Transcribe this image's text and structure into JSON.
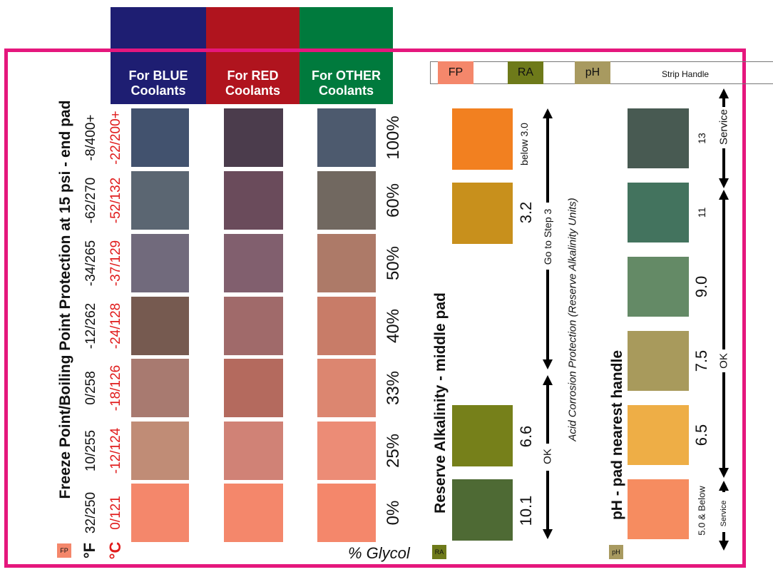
{
  "headers": {
    "blue": {
      "line1": "For BLUE",
      "line2": "Coolants",
      "color": "#1e1e72"
    },
    "red": {
      "line1": "For RED",
      "line2": "Coolants",
      "color": "#b0141e"
    },
    "other": {
      "line1": "For OTHER",
      "line2": "Coolants",
      "color": "#007a3d"
    }
  },
  "frame_color": "#e5177d",
  "freeze_title": "Freeze Point/Boiling Point Protection at 15 psi - end pad",
  "fp_badge": "FP",
  "unit_f": "°F",
  "unit_c": "°C",
  "rows": [
    {
      "f": "-8/400+",
      "c": "-22/200+",
      "glycol": "100%",
      "blue": "#42526e",
      "red": "#4b3c4c",
      "other": "#4d5a6e"
    },
    {
      "f": "-62/270",
      "c": "-52/132",
      "glycol": "60%",
      "blue": "#5b6672",
      "red": "#6a4b5b",
      "other": "#716860"
    },
    {
      "f": "-34/265",
      "c": "-37/129",
      "glycol": "50%",
      "blue": "#716a7c",
      "red": "#815f6e",
      "other": "#ad7a68"
    },
    {
      "f": "-12/262",
      "c": "-24/128",
      "glycol": "40%",
      "blue": "#765a50",
      "red": "#a06a6a",
      "other": "#c87c68"
    },
    {
      "f": "0/258",
      "c": "-18/126",
      "glycol": "33%",
      "blue": "#a87a70",
      "red": "#b46a5e",
      "other": "#dc8670"
    },
    {
      "f": "10/255",
      "c": "-12/124",
      "glycol": "25%",
      "blue": "#c08c76",
      "red": "#d08276",
      "other": "#ec8c76"
    },
    {
      "f": "32/250",
      "c": "0/121",
      "glycol": "0%",
      "blue": "#f4876b",
      "red": "#f4876b",
      "other": "#f4876b"
    }
  ],
  "glycol_label": "% Glycol",
  "strip": {
    "fp": {
      "label": "FP",
      "color": "#f4876b"
    },
    "ra": {
      "label": "RA",
      "color": "#6e7a1a"
    },
    "ph": {
      "label": "pH",
      "color": "#a89a60"
    },
    "handle": "Strip Handle"
  },
  "ra_section": {
    "title": "Reserve Alkalinity - middle pad",
    "badge": "RA",
    "swatches": [
      {
        "label": "below 3.0",
        "color": "#f28020"
      },
      {
        "label": "3.2",
        "color": "#c8901c"
      },
      {
        "label": "6.6",
        "color": "#76801a"
      },
      {
        "label": "10.1",
        "color": "#4e6a34"
      }
    ],
    "go_to_step": "Go to Step 3",
    "ok": "OK",
    "acid_note": "Acid Corrosion Protection (Reserve Alkalinity Units)"
  },
  "ph_section": {
    "title": "pH - pad nearest handle",
    "badge": "pH",
    "swatches": [
      {
        "label": "13",
        "color": "#485a52"
      },
      {
        "label": "11",
        "color": "#43735e"
      },
      {
        "label": "9.0",
        "color": "#648a66"
      },
      {
        "label": "7.5",
        "color": "#a89a5c"
      },
      {
        "label": "6.5",
        "color": "#eeae46"
      },
      {
        "label": "5.0 & Below",
        "color": "#f68c60"
      }
    ],
    "service_top": "Service",
    "ok": "OK",
    "service_bottom": "Service"
  }
}
